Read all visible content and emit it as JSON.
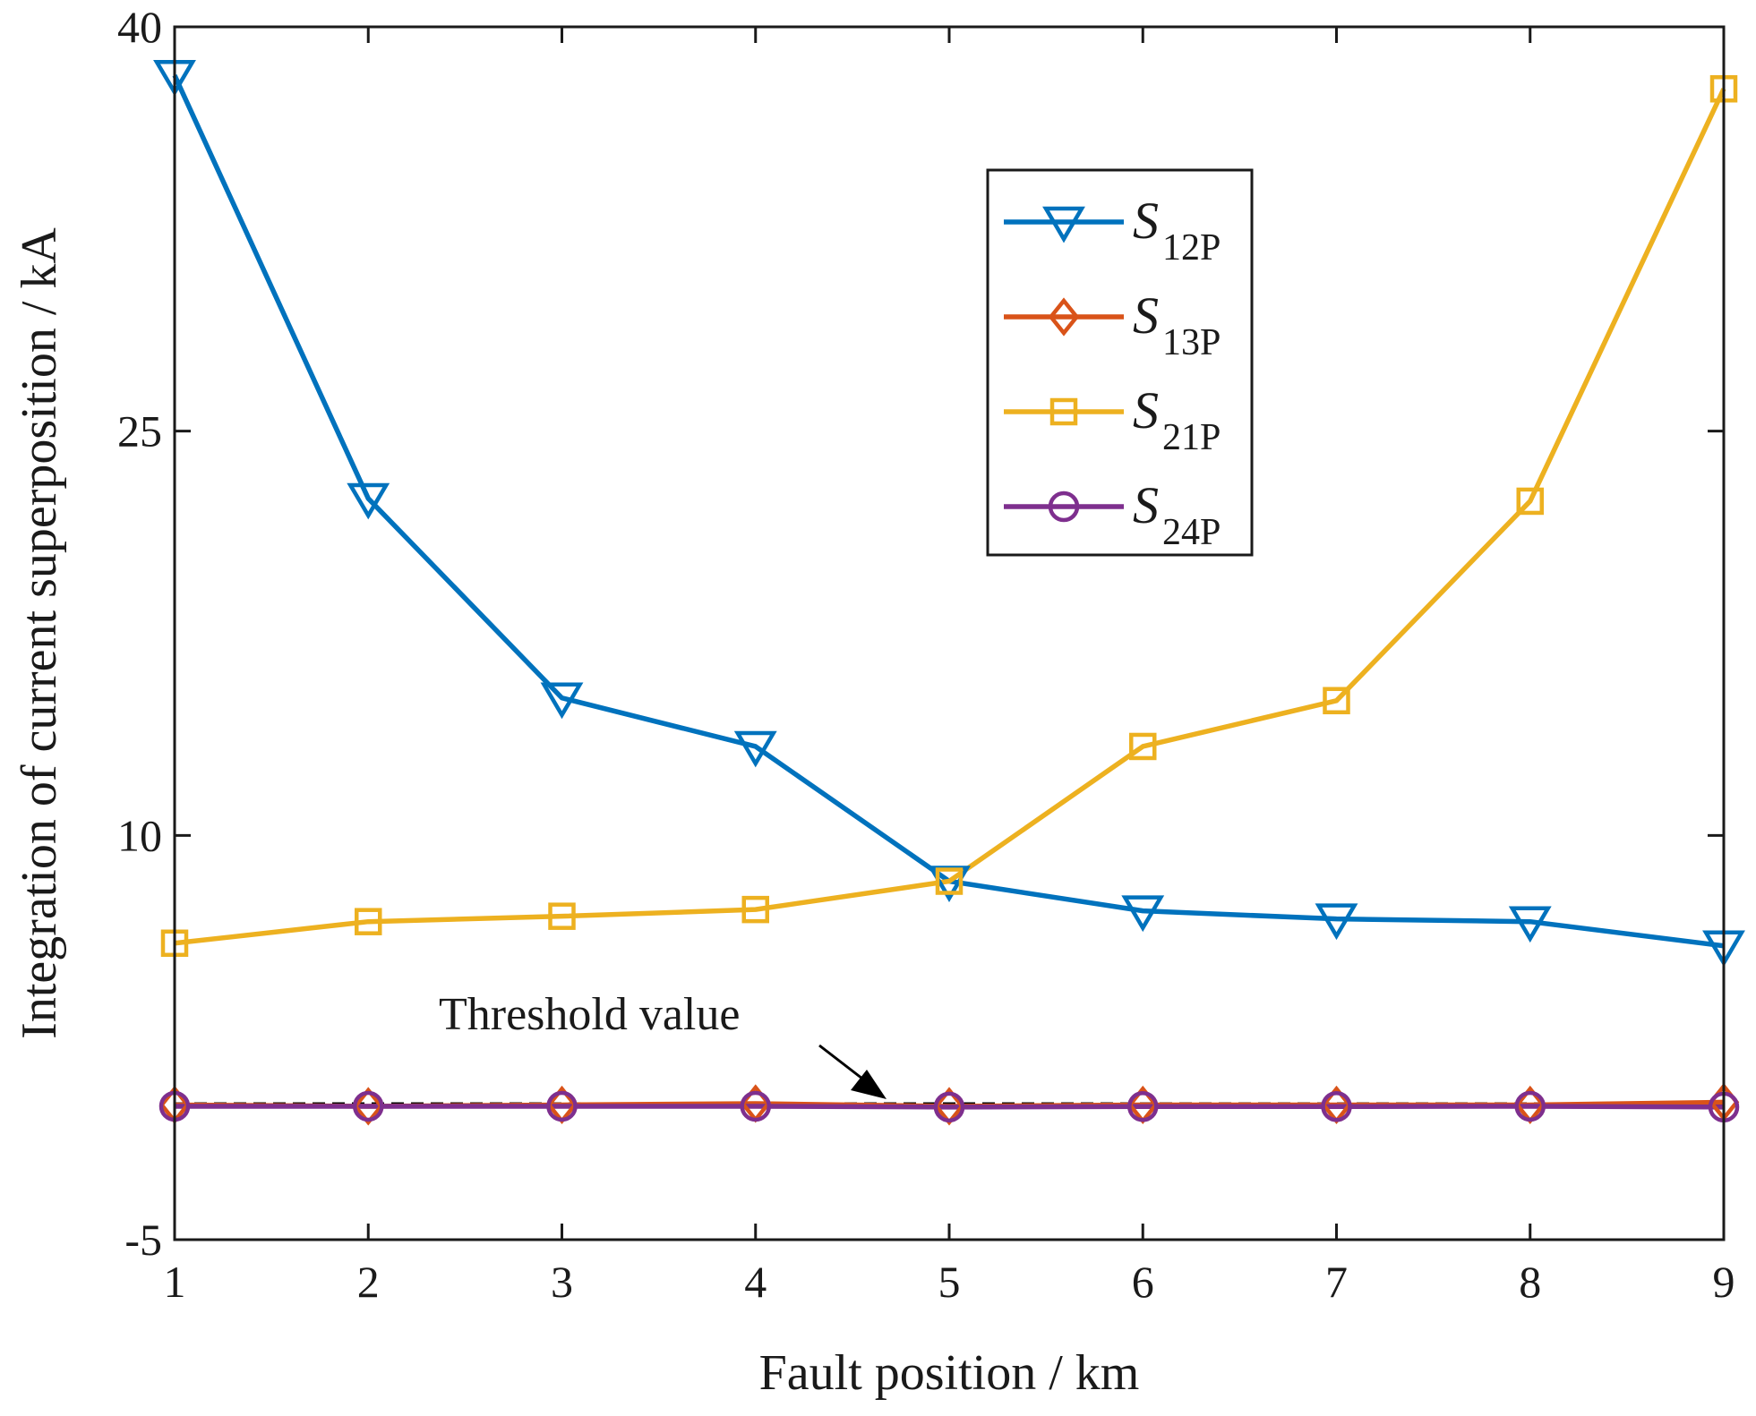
{
  "chart_data": {
    "type": "line",
    "title": "",
    "xlabel": "Fault position / km",
    "ylabel": "Integration of current superposition / kA",
    "xlim": [
      1,
      9
    ],
    "ylim": [
      -5,
      40
    ],
    "x": [
      1,
      2,
      3,
      4,
      5,
      6,
      7,
      8,
      9
    ],
    "xticks": [
      "1",
      "2",
      "3",
      "4",
      "5",
      "6",
      "7",
      "8",
      "9"
    ],
    "yticks": [
      {
        "value": 40,
        "label": "40"
      },
      {
        "value": 25,
        "label": "25"
      },
      {
        "value": 10,
        "label": "10"
      },
      {
        "value": -5,
        "label": "-5"
      }
    ],
    "grid": false,
    "legend_position": "top-center",
    "series": [
      {
        "name": "S",
        "sub": "12P",
        "color": "#0072BD",
        "marker": "triangle-down",
        "values": [
          38.2,
          22.5,
          15.1,
          13.3,
          8.3,
          7.2,
          6.9,
          6.8,
          5.9
        ]
      },
      {
        "name": "S",
        "sub": "13P",
        "color": "#D95319",
        "marker": "diamond",
        "values": [
          0.0,
          -0.05,
          0.0,
          0.05,
          -0.05,
          0.0,
          0.0,
          0.0,
          0.1
        ]
      },
      {
        "name": "S",
        "sub": "21P",
        "color": "#EDB120",
        "marker": "square",
        "values": [
          6.0,
          6.8,
          7.0,
          7.25,
          8.3,
          13.3,
          15.0,
          22.4,
          37.7
        ]
      },
      {
        "name": "S",
        "sub": "24P",
        "color": "#7E2F8E",
        "marker": "circle",
        "values": [
          -0.05,
          -0.05,
          -0.05,
          -0.05,
          -0.08,
          -0.06,
          -0.06,
          -0.05,
          -0.08
        ]
      }
    ],
    "threshold": {
      "label": "Threshold value",
      "value": 0.05,
      "color": "#000000",
      "style": "dashed"
    }
  }
}
